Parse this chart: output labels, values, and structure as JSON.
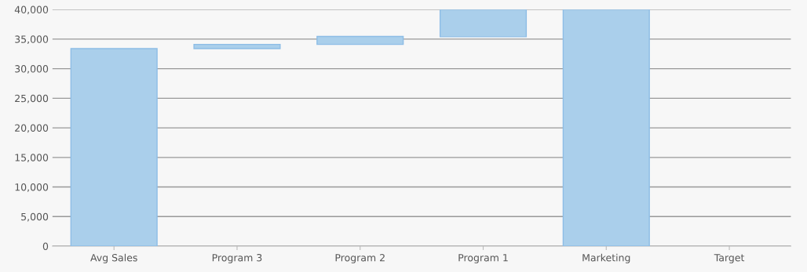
{
  "chart_data": {
    "type": "bar",
    "categories": [
      "Avg Sales",
      "Program 3",
      "Program 2",
      "Program 1",
      "Marketing",
      "Target"
    ],
    "values": [
      33400,
      700,
      1350,
      4600,
      40000,
      null
    ],
    "base": [
      0,
      33400,
      34100,
      35400,
      0,
      null
    ],
    "color": "#aacfeb",
    "ylim": [
      0,
      40000
    ],
    "yticks": [
      {
        "value": 0,
        "label": "0"
      },
      {
        "value": 5000,
        "label": "5,000"
      },
      {
        "value": 10000,
        "label": "10,000"
      },
      {
        "value": 15000,
        "label": "15,000"
      },
      {
        "value": 20000,
        "label": "20,000"
      },
      {
        "value": 25000,
        "label": "25,000"
      },
      {
        "value": 30000,
        "label": "30,000"
      },
      {
        "value": 35000,
        "label": "35,000"
      },
      {
        "value": 40000,
        "label": "40,000"
      }
    ],
    "grid": "y",
    "legend": false
  }
}
